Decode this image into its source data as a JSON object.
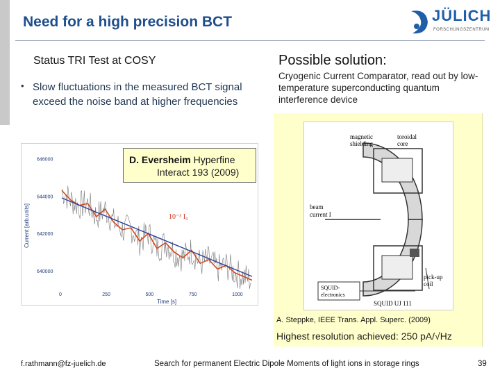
{
  "slide": {
    "title": "Need for a high precision BCT",
    "logo": {
      "name": "JÜLICH",
      "sub": "FORSCHUNGSZENTRUM"
    },
    "left": {
      "heading": "Status TRI Test at COSY",
      "bullet": "Slow fluctuations in the measured BCT signal exceed the noise band at higher frequencies"
    },
    "right": {
      "heading": "Possible solution:",
      "text": "Cryogenic Current Comparator, read out by low-temperature superconducting quantum interference device",
      "figure_labels": {
        "magnetic": "magnetic",
        "shielding": "shielding",
        "toroidal": "toroidal",
        "core": "core",
        "beam": "beam",
        "current": "current I",
        "pickup": "pick-up",
        "coil": "coil",
        "squid": "SQUID-",
        "electronics": "electronics",
        "squid_model": "SQUID UJ 111"
      },
      "citation": "A. Steppke, IEEE Trans. Appl. Superc. (2009)",
      "resolution": "Highest resolution achieved: 250 pA/√Hz"
    },
    "reference": {
      "author": "D. Eversheim",
      "journal": "Hyperfine",
      "rest": "Interact 193 (2009)"
    },
    "footer": {
      "email": "f.rathmann@fz-juelich.de",
      "talk": "Search for permanent Electric Dipole Moments of light ions in storage rings",
      "page": "39"
    }
  },
  "chart_data": {
    "type": "line",
    "xlabel": "Time [s]",
    "ylabel": "Current [arb.units]",
    "xlim": [
      0,
      1100
    ],
    "ylim": [
      639000,
      646500
    ],
    "xticks": [
      "0",
      "250",
      "500",
      "750",
      "1000"
    ],
    "yticks": [
      "646000",
      "644000",
      "642000",
      "640000"
    ],
    "annotation": "10⁻³ I₀",
    "colors": {
      "raw": "#777777",
      "smoothed": "#d04a20",
      "fit": "#2a3f9a"
    },
    "series": [
      {
        "x": [
          0,
          50,
          100,
          150,
          200,
          250,
          300,
          350,
          400,
          450,
          500,
          550,
          600,
          650,
          700,
          750,
          800,
          850,
          900,
          950,
          1000,
          1050,
          1100
        ],
        "values": [
          644300,
          643800,
          643500,
          643600,
          642900,
          643300,
          642600,
          642200,
          642300,
          641600,
          642000,
          641200,
          641500,
          641000,
          640700,
          641100,
          640400,
          640600,
          640100,
          640300,
          639900,
          639700,
          639500
        ]
      },
      {
        "x": [
          0,
          1100
        ],
        "values": [
          643900,
          639700
        ]
      }
    ]
  }
}
